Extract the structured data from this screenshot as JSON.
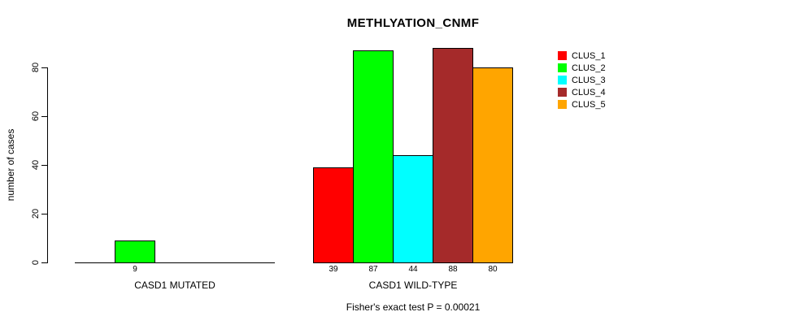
{
  "title": "METHLYATION_CNMF",
  "footer": "Fisher's exact test P = 0.00021",
  "y_axis": {
    "label": "number of cases",
    "ticks": [
      0,
      20,
      40,
      60,
      80
    ]
  },
  "legend": {
    "items": [
      {
        "label": "CLUS_1",
        "color": "#ff0000"
      },
      {
        "label": "CLUS_2",
        "color": "#00ff00"
      },
      {
        "label": "CLUS_3",
        "color": "#00ffff"
      },
      {
        "label": "CLUS_4",
        "color": "#a52a2a"
      },
      {
        "label": "CLUS_5",
        "color": "#ffa500"
      }
    ]
  },
  "chart_data": {
    "type": "bar",
    "title": "METHLYATION_CNMF",
    "xlabel": "",
    "ylabel": "number of cases",
    "ylim": [
      0,
      88
    ],
    "yticks": [
      0,
      20,
      40,
      60,
      80
    ],
    "grid": false,
    "legend_position": "top-right",
    "categories": [
      "CASD1 MUTATED",
      "CASD1 WILD-TYPE"
    ],
    "series": [
      {
        "name": "CLUS_1",
        "color": "#ff0000",
        "values": [
          0,
          39
        ]
      },
      {
        "name": "CLUS_2",
        "color": "#00ff00",
        "values": [
          9,
          87
        ]
      },
      {
        "name": "CLUS_3",
        "color": "#00ffff",
        "values": [
          0,
          44
        ]
      },
      {
        "name": "CLUS_4",
        "color": "#a52a2a",
        "values": [
          0,
          88
        ]
      },
      {
        "name": "CLUS_5",
        "color": "#ffa500",
        "values": [
          0,
          80
        ]
      }
    ],
    "bar_value_labels": {
      "CASD1 MUTATED": [
        null,
        9,
        null,
        null,
        null
      ],
      "CASD1 WILD-TYPE": [
        39,
        87,
        44,
        88,
        80
      ]
    },
    "annotation": "Fisher's exact test P = 0.00021"
  }
}
